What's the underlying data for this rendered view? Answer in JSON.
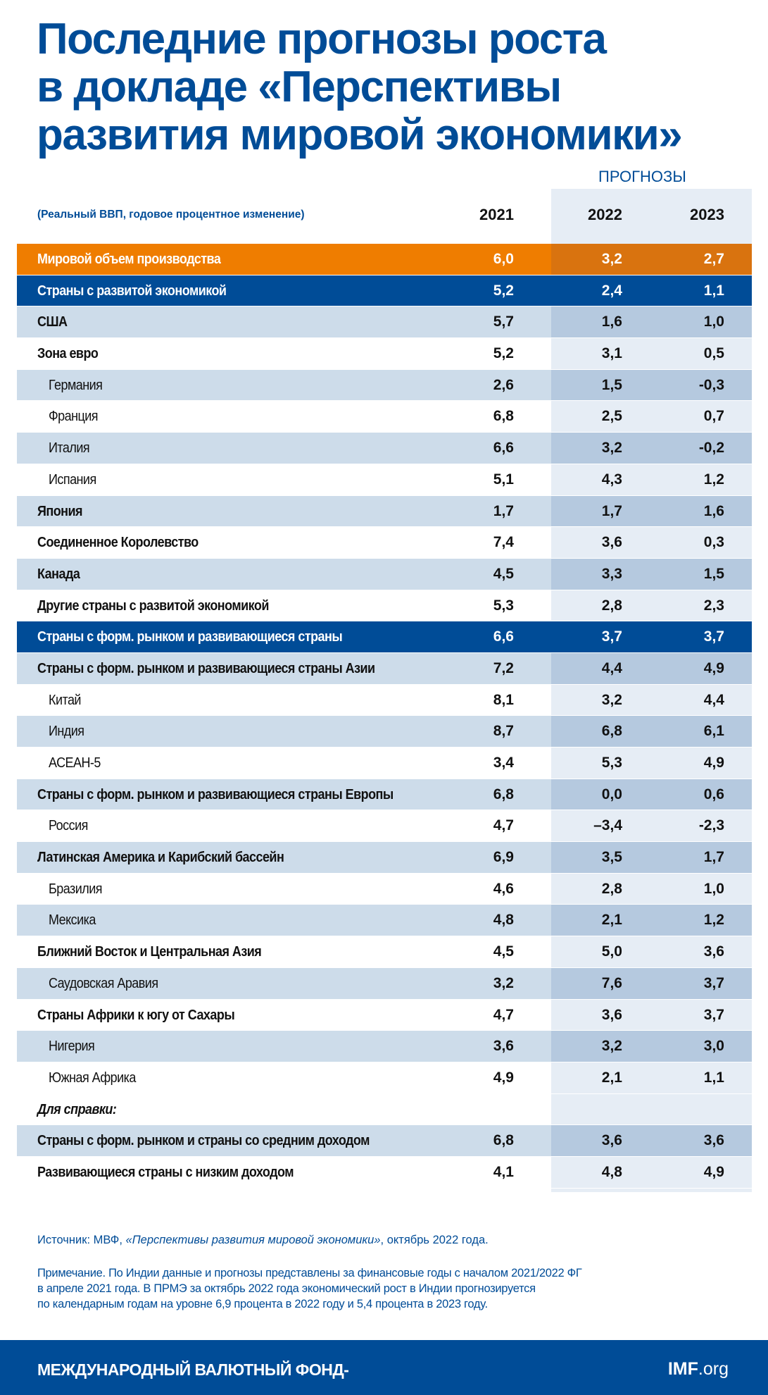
{
  "title": [
    "Последние прогнозы роста",
    "в докладе «Перспективы",
    "развития мировой экономики»"
  ],
  "forecast_label": "ПРОГНОЗЫ",
  "subtitle": "(Реальный ВВП, годовое процентное изменение)",
  "years": [
    "2021",
    "2022",
    "2023"
  ],
  "colors": {
    "brand_blue": "#004c97",
    "orange": "#ef7d00",
    "row_light": "#cddcea",
    "forecast_light": "#e6edf5",
    "forecast_dark": "#b5c9df"
  },
  "rows": [
    {
      "label": "Мировой объем производства",
      "v": [
        "6,0",
        "3,2",
        "2,7"
      ],
      "style": "orange"
    },
    {
      "label": "Страны с развитой экономикой",
      "v": [
        "5,2",
        "2,4",
        "1,1"
      ],
      "style": "blue"
    },
    {
      "label": "США",
      "v": [
        "5,7",
        "1,6",
        "1,0"
      ],
      "style": "light"
    },
    {
      "label": "Зона евро",
      "v": [
        "5,2",
        "3,1",
        "0,5"
      ],
      "style": "white"
    },
    {
      "label": "Германия",
      "v": [
        "2,6",
        "1,5",
        "-0,3"
      ],
      "style": "light indent"
    },
    {
      "label": "Франция",
      "v": [
        "6,8",
        "2,5",
        "0,7"
      ],
      "style": "white indent"
    },
    {
      "label": "Италия",
      "v": [
        "6,6",
        "3,2",
        "-0,2"
      ],
      "style": "light indent"
    },
    {
      "label": "Испания",
      "v": [
        "5,1",
        "4,3",
        "1,2"
      ],
      "style": "white indent"
    },
    {
      "label": "Япония",
      "v": [
        "1,7",
        "1,7",
        "1,6"
      ],
      "style": "light"
    },
    {
      "label": "Соединенное Королевство",
      "v": [
        "7,4",
        "3,6",
        "0,3"
      ],
      "style": "white"
    },
    {
      "label": "Канада",
      "v": [
        "4,5",
        "3,3",
        "1,5"
      ],
      "style": "light"
    },
    {
      "label": "Другие страны с развитой экономикой",
      "v": [
        "5,3",
        "2,8",
        "2,3"
      ],
      "style": "white"
    },
    {
      "label": "Страны с форм. рынком и развивающиеся страны",
      "v": [
        "6,6",
        "3,7",
        "3,7"
      ],
      "style": "blue"
    },
    {
      "label": "Страны с форм. рынком и развивающиеся страны Азии",
      "v": [
        "7,2",
        "4,4",
        "4,9"
      ],
      "style": "light"
    },
    {
      "label": "Китай",
      "v": [
        "8,1",
        "3,2",
        "4,4"
      ],
      "style": "white indent"
    },
    {
      "label": "Индия",
      "v": [
        "8,7",
        "6,8",
        "6,1"
      ],
      "style": "light indent"
    },
    {
      "label": "АСЕАН-5",
      "v": [
        "3,4",
        "5,3",
        "4,9"
      ],
      "style": "white indent"
    },
    {
      "label": "Страны с форм. рынком и развивающиеся страны Европы",
      "v": [
        "6,8",
        "0,0",
        "0,6"
      ],
      "style": "light"
    },
    {
      "label": "Россия",
      "v": [
        "4,7",
        "–3,4",
        "-2,3"
      ],
      "style": "white indent"
    },
    {
      "label": "Латинская Америка и Карибский бассейн",
      "v": [
        "6,9",
        "3,5",
        "1,7"
      ],
      "style": "light"
    },
    {
      "label": "Бразилия",
      "v": [
        "4,6",
        "2,8",
        "1,0"
      ],
      "style": "white indent"
    },
    {
      "label": "Мексика",
      "v": [
        "4,8",
        "2,1",
        "1,2"
      ],
      "style": "light indent"
    },
    {
      "label": "Ближний Восток и Центральная Азия",
      "v": [
        "4,5",
        "5,0",
        "3,6"
      ],
      "style": "white"
    },
    {
      "label": "Саудовская Аравия",
      "v": [
        "3,2",
        "7,6",
        "3,7"
      ],
      "style": "light indent"
    },
    {
      "label": "Страны Африки к югу от Сахары",
      "v": [
        "4,7",
        "3,6",
        "3,7"
      ],
      "style": "white"
    },
    {
      "label": "Нигерия",
      "v": [
        "3,6",
        "3,2",
        "3,0"
      ],
      "style": "light indent"
    },
    {
      "label": "Южная Африка",
      "v": [
        "4,9",
        "2,1",
        "1,1"
      ],
      "style": "white indent"
    },
    {
      "label": "Для справки:",
      "v": [
        "",
        "",
        ""
      ],
      "style": "white note"
    },
    {
      "label": "Страны с форм. рынком и страны со средним доходом",
      "v": [
        "6,8",
        "3,6",
        "3,6"
      ],
      "style": "light"
    },
    {
      "label": "Развивающиеся страны с низким доходом",
      "v": [
        "4,1",
        "4,8",
        "4,9"
      ],
      "style": "white"
    }
  ],
  "source": {
    "prefix": "Источник: МВФ, ",
    "italic": "«Перспективы развития мировой экономики»",
    "suffix": ", октябрь 2022 года."
  },
  "note": [
    "Примечание. По Индии данные и прогнозы представлены за финансовые годы с началом 2021/2022 ФГ",
    "в апреле 2021 года. В ПРМЭ за октябрь 2022 года экономический рост в Индии  прогнозируется",
    "по календарным годам на уровне 6,9 процента в 2022 году и 5,4 процента в 2023 году."
  ],
  "footer": {
    "name": "МЕЖДУНАРОДНЫЙ ВАЛЮТНЫЙ ФОНД-",
    "logo_bold": "IMF",
    "logo_rest": ".org"
  }
}
